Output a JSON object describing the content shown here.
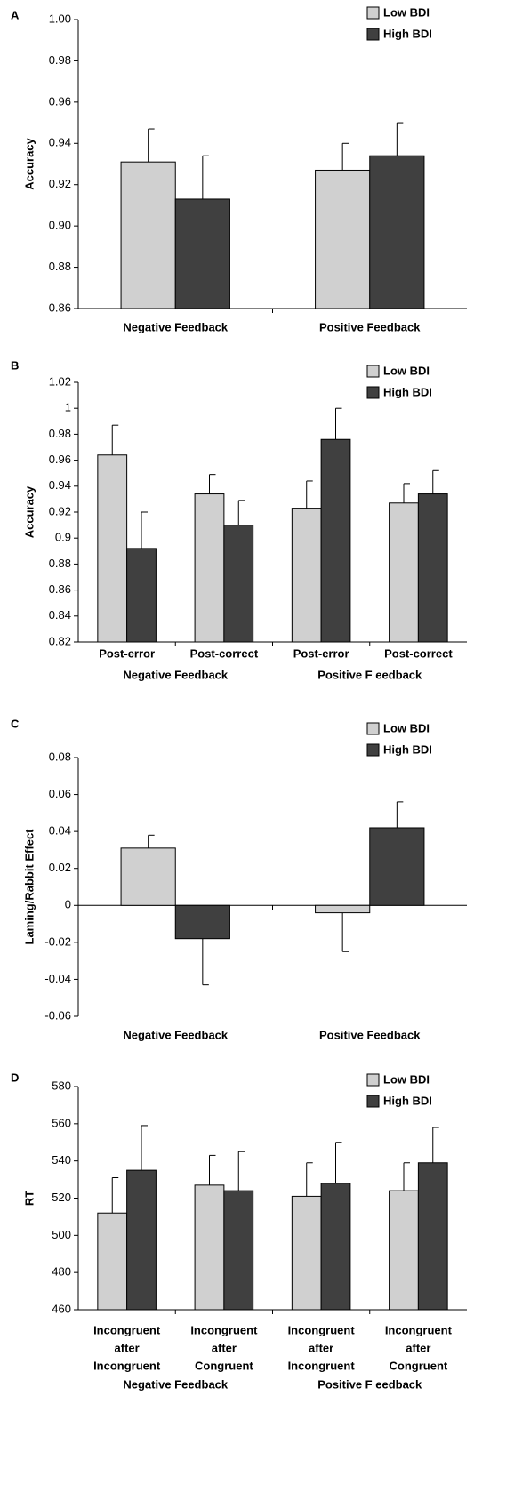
{
  "chart_data": [
    {
      "type": "bar",
      "panel_label": "A",
      "y_label": "Accuracy",
      "categories": [
        "Negative Feedback",
        "Positive Feedback"
      ],
      "series": [
        {
          "name": "Low BDI",
          "color": "#d0d0d0",
          "values": [
            0.931,
            0.927
          ],
          "errors": [
            0.016,
            0.013
          ]
        },
        {
          "name": "High BDI",
          "color": "#404040",
          "values": [
            0.913,
            0.934
          ],
          "errors": [
            0.021,
            0.016
          ]
        }
      ],
      "ylim": [
        0.86,
        1.0
      ],
      "yticks": [
        0.86,
        0.88,
        {
          "value": 0.9,
          "label": "0.90"
        },
        0.92,
        0.94,
        0.96,
        0.98,
        {
          "value": 1,
          "label": "1.00"
        }
      ]
    },
    {
      "type": "bar",
      "panel_label": "B",
      "y_label": "Accuracy",
      "categories": [
        "Post-error",
        "Post-correct",
        "Post-error",
        "Post-correct"
      ],
      "group_labels": [
        "Negative Feedback",
        "Positive F eedback"
      ],
      "series": [
        {
          "name": "Low BDI",
          "color": "#d0d0d0",
          "values": [
            0.964,
            0.934,
            0.923,
            0.927
          ],
          "errors": [
            0.023,
            0.015,
            0.021,
            0.015
          ]
        },
        {
          "name": "High BDI",
          "color": "#404040",
          "values": [
            0.892,
            0.91,
            0.976,
            0.934
          ],
          "errors": [
            0.028,
            0.019,
            0.024,
            0.018
          ]
        }
      ],
      "ylim": [
        0.82,
        1.02
      ],
      "yticks": [
        0.82,
        0.84,
        0.86,
        0.88,
        0.9,
        0.92,
        0.94,
        0.96,
        0.98,
        1,
        1.02
      ]
    },
    {
      "type": "bar",
      "panel_label": "C",
      "y_label": "Laming/Rabbit Effect",
      "categories": [
        "Negative Feedback",
        "Positive Feedback"
      ],
      "series": [
        {
          "name": "Low BDI",
          "color": "#d0d0d0",
          "values": [
            0.031,
            -0.004
          ],
          "errors": [
            0.007,
            0.021
          ]
        },
        {
          "name": "High BDI",
          "color": "#404040",
          "values": [
            -0.018,
            0.042
          ],
          "errors": [
            0.025,
            0.014
          ]
        }
      ],
      "ylim": [
        -0.06,
        0.08
      ],
      "yticks": [
        -0.06,
        -0.04,
        -0.02,
        0,
        0.02,
        0.04,
        0.06,
        0.08
      ]
    },
    {
      "type": "bar",
      "panel_label": "D",
      "y_label": "RT",
      "categories": [
        [
          "Incongruent",
          "after",
          "Incongruent"
        ],
        [
          "Incongruent",
          "after",
          "Congruent"
        ],
        [
          "Incongruent",
          "after",
          "Incongruent"
        ],
        [
          "Incongruent",
          "after",
          "Congruent"
        ]
      ],
      "group_labels": [
        "Negative Feedback",
        "Positive F eedback"
      ],
      "series": [
        {
          "name": "Low BDI",
          "color": "#d0d0d0",
          "values": [
            512,
            527,
            521,
            524
          ],
          "errors": [
            19,
            16,
            18,
            15
          ]
        },
        {
          "name": "High BDI",
          "color": "#404040",
          "values": [
            535,
            524,
            528,
            539
          ],
          "errors": [
            24,
            21,
            22,
            19
          ]
        }
      ],
      "ylim": [
        460,
        580
      ],
      "yticks": [
        460,
        480,
        500,
        520,
        540,
        560,
        580
      ]
    }
  ]
}
